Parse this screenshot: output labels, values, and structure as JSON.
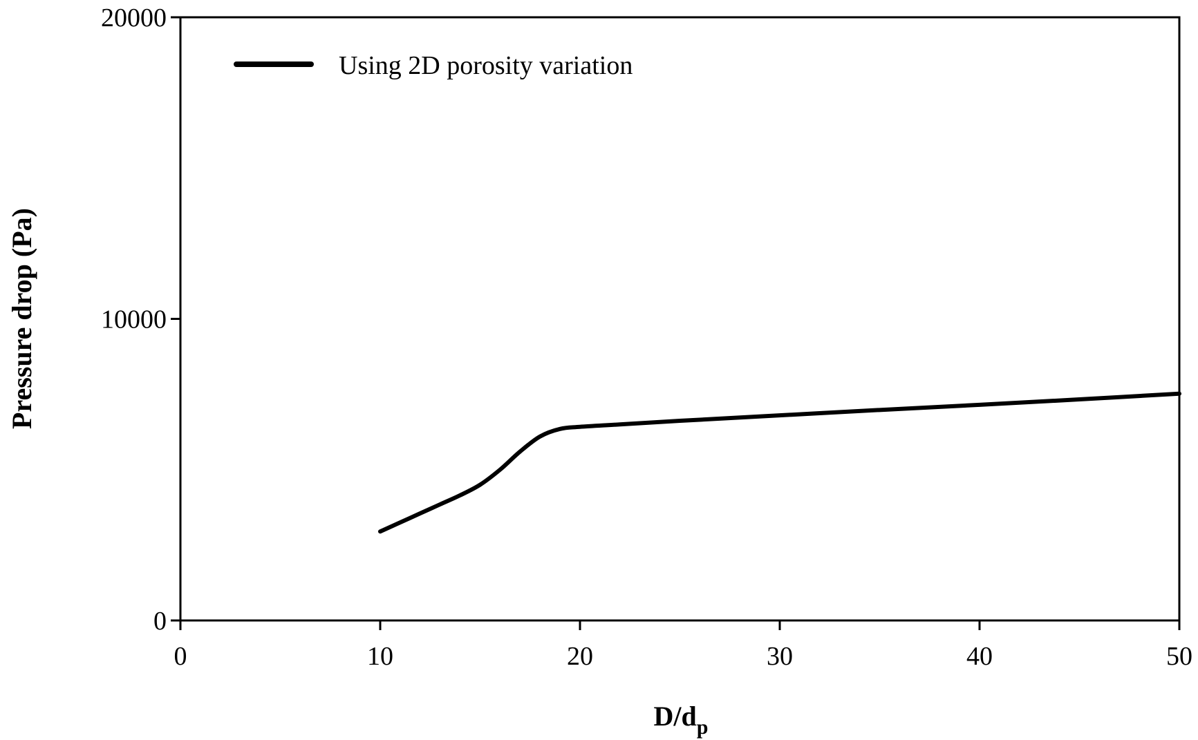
{
  "chart_data": {
    "type": "line",
    "xlabel_main": "D/d",
    "xlabel_sub": "p",
    "ylabel": "Pressure drop (Pa)",
    "xlim": [
      0,
      50
    ],
    "ylim": [
      0,
      20000
    ],
    "x_ticks": [
      0,
      10,
      20,
      30,
      40,
      50
    ],
    "y_ticks": [
      0,
      10000,
      20000
    ],
    "grid": false,
    "legend_position": "top-left",
    "series": [
      {
        "name": "Using 2D porosity variation",
        "color": "#000000",
        "x": [
          10,
          11,
          12,
          13,
          14,
          15,
          16,
          17,
          18,
          19,
          20,
          22,
          25,
          30,
          35,
          40,
          45,
          50
        ],
        "y": [
          2950,
          3250,
          3550,
          3850,
          4150,
          4500,
          5000,
          5600,
          6100,
          6350,
          6420,
          6500,
          6620,
          6800,
          6980,
          7150,
          7330,
          7520
        ]
      }
    ]
  }
}
